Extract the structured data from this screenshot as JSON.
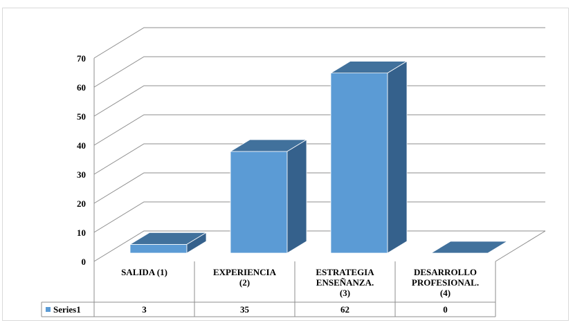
{
  "chart_data": {
    "type": "bar",
    "style": "3d-column-with-data-table",
    "categories": [
      "SALIDA (1)",
      "EXPERIENCIA (2)",
      "ESTRATEGIA ENSEÑANZA. (3)",
      "DESARROLLO PROFESIONAL. (4)"
    ],
    "category_lines": [
      [
        "SALIDA (1)"
      ],
      [
        "EXPERIENCIA",
        "(2)"
      ],
      [
        "ESTRATEGIA",
        "ENSEÑANZA.",
        "(3)"
      ],
      [
        "DESARROLLO",
        "PROFESIONAL.",
        "(4)"
      ]
    ],
    "series": [
      {
        "name": "Series1",
        "values": [
          3,
          35,
          62,
          0
        ]
      }
    ],
    "ylim": [
      0,
      70
    ],
    "yticks": [
      "0",
      "10",
      "20",
      "30",
      "40",
      "50",
      "60",
      "70"
    ],
    "grid": true,
    "legend": "data-table",
    "colors": {
      "front": "#5B9BD5",
      "top": "#41719C",
      "side": "#35618C",
      "grid": "#8C8C8C",
      "frame": "#D9D9D9"
    }
  }
}
